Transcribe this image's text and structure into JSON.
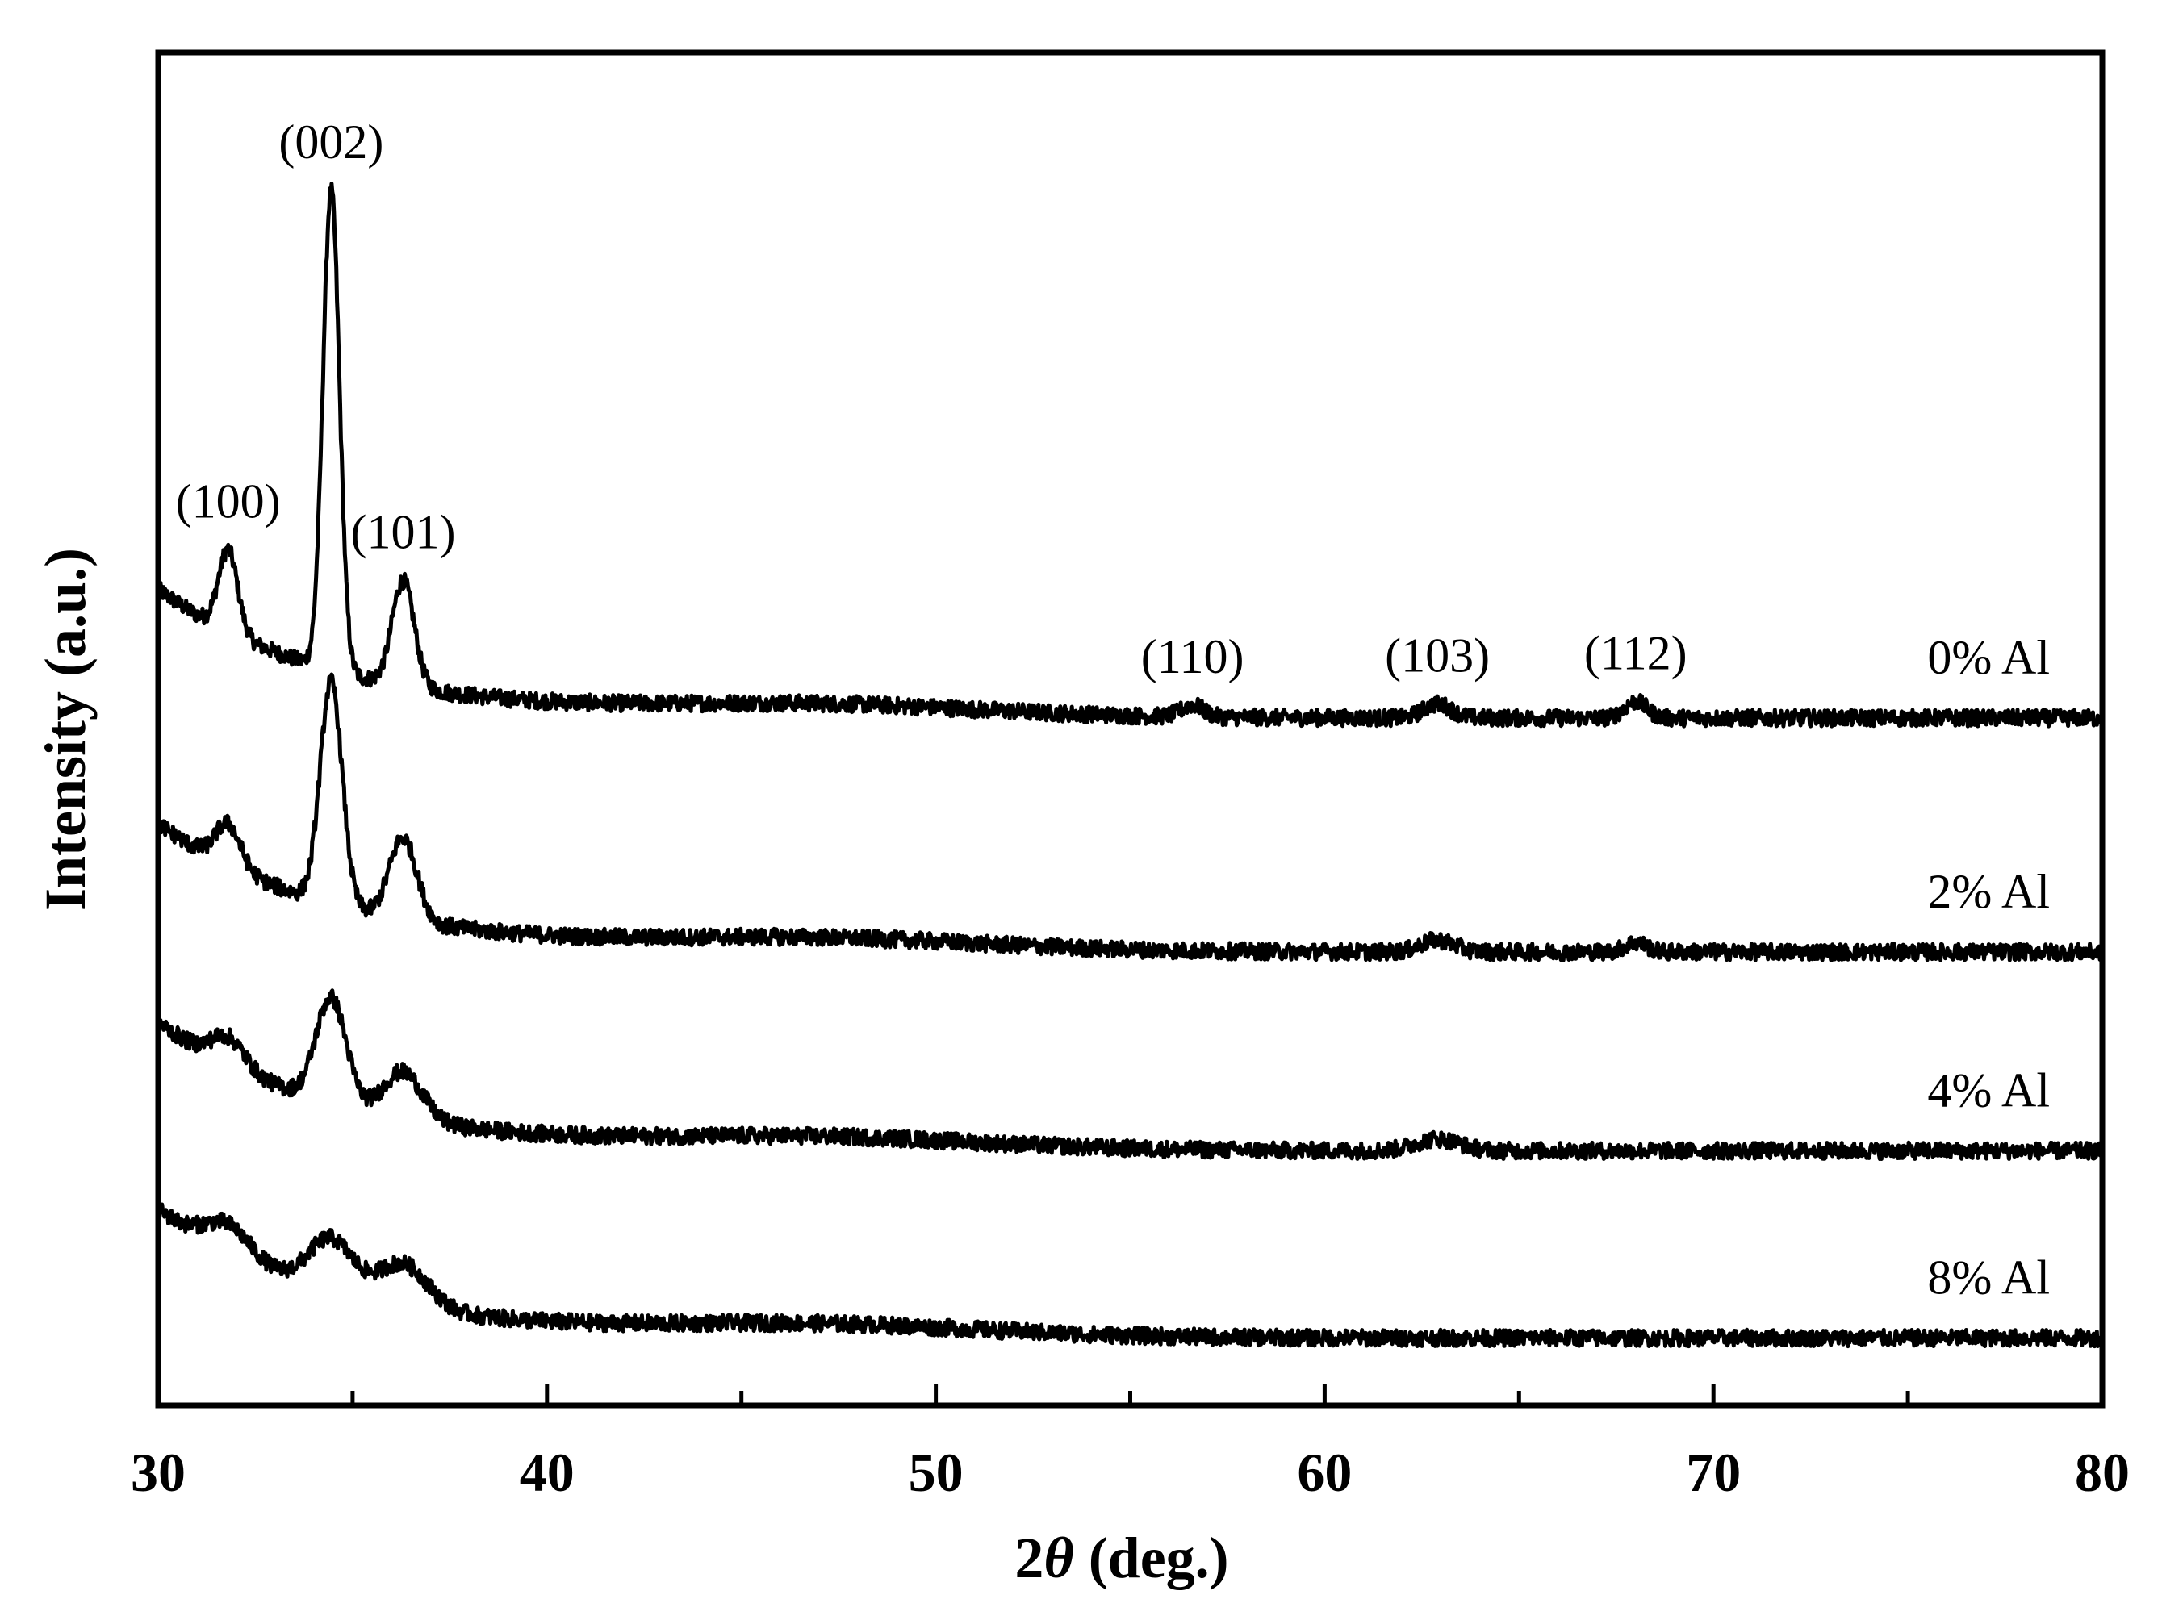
{
  "chart_data": {
    "type": "line",
    "title": "",
    "xlabel_prefix": "2",
    "xlabel_symbol": "θ",
    "xlabel_suffix": " (deg.)",
    "ylabel": "Intensity (a.u.)",
    "xlim": [
      30,
      80
    ],
    "xticks": [
      30,
      40,
      50,
      60,
      70,
      80
    ],
    "y_ticks_shown": false,
    "grid": false,
    "legend": "inline labels at right end of each trace",
    "series": [
      {
        "name": "0% Al",
        "offset": 3.0,
        "peaks": [
          {
            "x": 31.8,
            "h": 0.35,
            "w": 0.35
          },
          {
            "x": 34.45,
            "h": 2.05,
            "w": 0.3
          },
          {
            "x": 36.3,
            "h": 0.45,
            "w": 0.4
          },
          {
            "x": 56.6,
            "h": 0.05,
            "w": 0.4
          },
          {
            "x": 62.9,
            "h": 0.06,
            "w": 0.5
          },
          {
            "x": 68.0,
            "h": 0.07,
            "w": 0.4
          }
        ]
      },
      {
        "name": "2% Al",
        "offset": 2.0,
        "peaks": [
          {
            "x": 31.8,
            "h": 0.18,
            "w": 0.45
          },
          {
            "x": 34.45,
            "h": 0.95,
            "w": 0.4
          },
          {
            "x": 36.3,
            "h": 0.35,
            "w": 0.5
          },
          {
            "x": 62.9,
            "h": 0.05,
            "w": 0.6
          },
          {
            "x": 68.0,
            "h": 0.04,
            "w": 0.4
          }
        ]
      },
      {
        "name": "4% Al",
        "offset": 1.15,
        "peaks": [
          {
            "x": 31.8,
            "h": 0.12,
            "w": 0.6
          },
          {
            "x": 34.45,
            "h": 0.45,
            "w": 0.55
          },
          {
            "x": 36.3,
            "h": 0.2,
            "w": 0.7
          },
          {
            "x": 62.9,
            "h": 0.05,
            "w": 0.8
          }
        ]
      },
      {
        "name": "8% Al",
        "offset": 0.35,
        "peaks": [
          {
            "x": 31.8,
            "h": 0.12,
            "w": 0.8
          },
          {
            "x": 34.45,
            "h": 0.22,
            "w": 0.8
          },
          {
            "x": 36.3,
            "h": 0.18,
            "w": 0.9
          }
        ]
      }
    ],
    "annotations": [
      {
        "text": "(100)",
        "x": 31.8,
        "series": "0% Al"
      },
      {
        "text": "(002)",
        "x": 34.45,
        "series": "0% Al"
      },
      {
        "text": "(101)",
        "x": 36.3,
        "series": "0% Al"
      },
      {
        "text": "(110)",
        "x": 56.6,
        "series": "0% Al"
      },
      {
        "text": "(103)",
        "x": 62.9,
        "series": "0% Al"
      },
      {
        "text": "(112)",
        "x": 68.0,
        "series": "0% Al"
      }
    ]
  }
}
